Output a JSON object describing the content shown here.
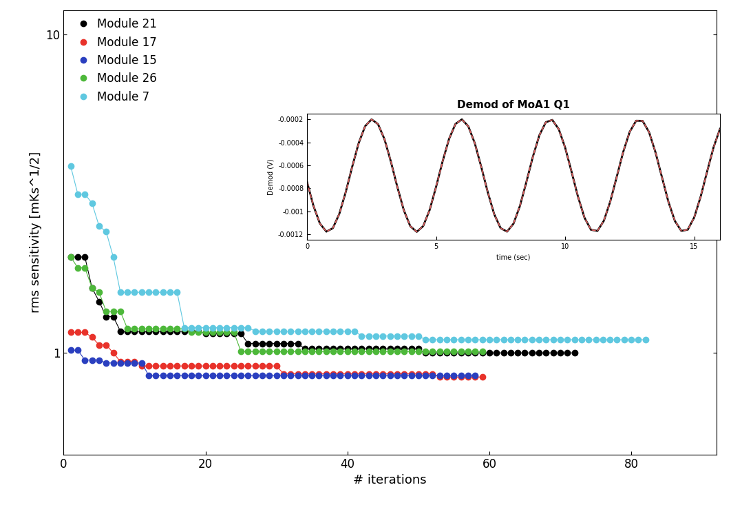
{
  "chart_data": [
    {
      "type": "line",
      "x_label": "# iterations",
      "y_label": "rms sensitivity [mKs^1/2]",
      "log": "y",
      "xlim": [
        0,
        92
      ],
      "xticks": [
        0,
        20,
        40,
        60,
        80
      ],
      "ylim": [
        0.48,
        11.9
      ],
      "yticks": [
        1,
        10
      ],
      "legend": "upper left",
      "marker": "o",
      "line_style": "solid",
      "series": [
        {
          "name": "Module 21",
          "color": "#000000",
          "x": [
            1,
            2,
            3,
            4,
            5,
            6,
            7,
            8,
            9,
            10,
            11,
            12,
            13,
            14,
            15,
            16,
            17,
            18,
            19,
            20,
            21,
            22,
            23,
            24,
            25,
            26,
            27,
            28,
            29,
            30,
            31,
            32,
            33,
            34,
            35,
            36,
            37,
            38,
            39,
            40,
            41,
            42,
            43,
            44,
            45,
            46,
            47,
            48,
            49,
            50,
            51,
            52,
            53,
            54,
            55,
            56,
            57,
            58,
            59,
            60,
            61,
            62,
            63,
            64,
            65,
            66,
            67,
            68,
            69,
            70,
            71,
            72
          ],
          "values": [
            2.0,
            2.0,
            2.0,
            1.6,
            1.45,
            1.3,
            1.3,
            1.17,
            1.17,
            1.17,
            1.17,
            1.17,
            1.17,
            1.17,
            1.17,
            1.17,
            1.17,
            1.17,
            1.17,
            1.15,
            1.15,
            1.15,
            1.15,
            1.15,
            1.15,
            1.07,
            1.07,
            1.07,
            1.07,
            1.07,
            1.07,
            1.07,
            1.07,
            1.03,
            1.03,
            1.03,
            1.03,
            1.03,
            1.03,
            1.03,
            1.03,
            1.03,
            1.03,
            1.03,
            1.03,
            1.03,
            1.03,
            1.03,
            1.03,
            1.03,
            1.0,
            1.0,
            1.0,
            1.0,
            1.0,
            1.0,
            1.0,
            1.0,
            1.0,
            1.0,
            1.0,
            1.0,
            1.0,
            1.0,
            1.0,
            1.0,
            1.0,
            1.0,
            1.0,
            1.0,
            1.0,
            1.0
          ]
        },
        {
          "name": "Module 17",
          "color": "#e8322a",
          "x": [
            1,
            2,
            3,
            4,
            5,
            6,
            7,
            8,
            9,
            10,
            11,
            12,
            13,
            14,
            15,
            16,
            17,
            18,
            19,
            20,
            21,
            22,
            23,
            24,
            25,
            26,
            27,
            28,
            29,
            30,
            31,
            32,
            33,
            34,
            35,
            36,
            37,
            38,
            39,
            40,
            41,
            42,
            43,
            44,
            45,
            46,
            47,
            48,
            49,
            50,
            51,
            52,
            53,
            54,
            55,
            56,
            57,
            58,
            59
          ],
          "values": [
            1.16,
            1.16,
            1.16,
            1.12,
            1.06,
            1.06,
            1.0,
            0.94,
            0.94,
            0.94,
            0.91,
            0.91,
            0.91,
            0.91,
            0.91,
            0.91,
            0.91,
            0.91,
            0.91,
            0.91,
            0.91,
            0.91,
            0.91,
            0.91,
            0.91,
            0.91,
            0.91,
            0.91,
            0.91,
            0.91,
            0.86,
            0.86,
            0.86,
            0.86,
            0.86,
            0.86,
            0.86,
            0.86,
            0.86,
            0.86,
            0.86,
            0.86,
            0.86,
            0.86,
            0.86,
            0.86,
            0.86,
            0.86,
            0.86,
            0.86,
            0.86,
            0.86,
            0.84,
            0.84,
            0.84,
            0.84,
            0.84,
            0.84,
            0.84
          ]
        },
        {
          "name": "Module 15",
          "color": "#2a3fbf",
          "x": [
            1,
            2,
            3,
            4,
            5,
            6,
            7,
            8,
            9,
            10,
            11,
            12,
            13,
            14,
            15,
            16,
            17,
            18,
            19,
            20,
            21,
            22,
            23,
            24,
            25,
            26,
            27,
            28,
            29,
            30,
            31,
            32,
            33,
            34,
            35,
            36,
            37,
            38,
            39,
            40,
            41,
            42,
            43,
            44,
            45,
            46,
            47,
            48,
            49,
            50,
            51,
            52,
            53,
            54,
            55,
            56,
            57,
            58
          ],
          "values": [
            1.02,
            1.02,
            0.95,
            0.95,
            0.95,
            0.93,
            0.93,
            0.93,
            0.93,
            0.93,
            0.93,
            0.85,
            0.85,
            0.85,
            0.85,
            0.85,
            0.85,
            0.85,
            0.85,
            0.85,
            0.85,
            0.85,
            0.85,
            0.85,
            0.85,
            0.85,
            0.85,
            0.85,
            0.85,
            0.85,
            0.85,
            0.85,
            0.85,
            0.85,
            0.85,
            0.85,
            0.85,
            0.85,
            0.85,
            0.85,
            0.85,
            0.85,
            0.85,
            0.85,
            0.85,
            0.85,
            0.85,
            0.85,
            0.85,
            0.85,
            0.85,
            0.85,
            0.85,
            0.85,
            0.85,
            0.85,
            0.85,
            0.85
          ]
        },
        {
          "name": "Module 26",
          "color": "#4db83a",
          "x": [
            1,
            2,
            3,
            4,
            5,
            6,
            7,
            8,
            9,
            10,
            11,
            12,
            13,
            14,
            15,
            16,
            17,
            18,
            19,
            20,
            21,
            22,
            23,
            24,
            25,
            26,
            27,
            28,
            29,
            30,
            31,
            32,
            33,
            34,
            35,
            36,
            37,
            38,
            39,
            40,
            41,
            42,
            43,
            44,
            45,
            46,
            47,
            48,
            49,
            50,
            51,
            52,
            53,
            54,
            55,
            56,
            57,
            58,
            59
          ],
          "values": [
            2.0,
            1.85,
            1.85,
            1.6,
            1.55,
            1.35,
            1.35,
            1.35,
            1.19,
            1.19,
            1.19,
            1.19,
            1.19,
            1.19,
            1.19,
            1.19,
            1.19,
            1.16,
            1.16,
            1.16,
            1.16,
            1.16,
            1.16,
            1.16,
            1.01,
            1.01,
            1.01,
            1.01,
            1.01,
            1.01,
            1.01,
            1.01,
            1.01,
            1.01,
            1.01,
            1.01,
            1.01,
            1.01,
            1.01,
            1.01,
            1.01,
            1.01,
            1.01,
            1.01,
            1.01,
            1.01,
            1.01,
            1.01,
            1.01,
            1.01,
            1.01,
            1.01,
            1.01,
            1.01,
            1.01,
            1.01,
            1.01,
            1.01,
            1.01
          ]
        },
        {
          "name": "Module 7",
          "color": "#5fc8e0",
          "x": [
            1,
            2,
            3,
            4,
            5,
            6,
            7,
            8,
            9,
            10,
            11,
            12,
            13,
            14,
            15,
            16,
            17,
            18,
            19,
            20,
            21,
            22,
            23,
            24,
            25,
            26,
            27,
            28,
            29,
            30,
            31,
            32,
            33,
            34,
            35,
            36,
            37,
            38,
            39,
            40,
            41,
            42,
            43,
            44,
            45,
            46,
            47,
            48,
            49,
            50,
            51,
            52,
            53,
            54,
            55,
            56,
            57,
            58,
            59,
            60,
            61,
            62,
            63,
            64,
            65,
            66,
            67,
            68,
            69,
            70,
            71,
            72,
            73,
            74,
            75,
            76,
            77,
            78,
            79,
            80,
            81,
            82
          ],
          "values": [
            3.85,
            3.15,
            3.15,
            2.95,
            2.5,
            2.4,
            2.0,
            1.55,
            1.55,
            1.55,
            1.55,
            1.55,
            1.55,
            1.55,
            1.55,
            1.55,
            1.2,
            1.2,
            1.2,
            1.2,
            1.2,
            1.2,
            1.2,
            1.2,
            1.2,
            1.2,
            1.17,
            1.17,
            1.17,
            1.17,
            1.17,
            1.17,
            1.17,
            1.17,
            1.17,
            1.17,
            1.17,
            1.17,
            1.17,
            1.17,
            1.17,
            1.13,
            1.13,
            1.13,
            1.13,
            1.13,
            1.13,
            1.13,
            1.13,
            1.13,
            1.1,
            1.1,
            1.1,
            1.1,
            1.1,
            1.1,
            1.1,
            1.1,
            1.1,
            1.1,
            1.1,
            1.1,
            1.1,
            1.1,
            1.1,
            1.1,
            1.1,
            1.1,
            1.1,
            1.1,
            1.1,
            1.1,
            1.1,
            1.1,
            1.1,
            1.1,
            1.1,
            1.1,
            1.1,
            1.1,
            1.1,
            1.1
          ]
        }
      ]
    },
    {
      "type": "line",
      "title": "Demod of MoA1 Q1",
      "x_label": "time (sec)",
      "y_label": "Demod (V)",
      "xlim": [
        0,
        16
      ],
      "xticks": [
        0,
        5,
        10,
        15
      ],
      "ylim": [
        -0.00125,
        -0.00015
      ],
      "yticks": [
        -0.0012,
        -0.001,
        -0.0008,
        -0.0006,
        -0.0004,
        -0.0002
      ],
      "series": [
        {
          "color": "#000000",
          "line_style": "solid",
          "x": [
            0,
            0.25,
            0.5,
            0.75,
            1,
            1.25,
            1.5,
            1.75,
            2,
            2.25,
            2.5,
            2.75,
            3,
            3.25,
            3.5,
            3.75,
            4,
            4.25,
            4.5,
            4.75,
            5,
            5.25,
            5.5,
            5.75,
            6,
            6.25,
            6.5,
            6.75,
            7,
            7.25,
            7.5,
            7.75,
            8,
            8.25,
            8.5,
            8.75,
            9,
            9.25,
            9.5,
            9.75,
            10,
            10.25,
            10.5,
            10.75,
            11,
            11.25,
            11.5,
            11.75,
            12,
            12.25,
            12.5,
            12.75,
            13,
            13.25,
            13.5,
            13.75,
            14,
            14.25,
            14.5,
            14.75,
            15,
            15.25,
            15.5,
            15.75,
            16
          ],
          "values": [
            -0.000745,
            -0.000954,
            -0.001108,
            -0.001178,
            -0.001148,
            -0.001024,
            -0.000833,
            -0.000613,
            -0.000408,
            -0.00026,
            -0.0002,
            -0.000241,
            -0.000372,
            -0.000569,
            -0.00079,
            -0.000991,
            -0.001131,
            -0.00118,
            -0.00113,
            -0.00099,
            -0.000788,
            -0.000568,
            -0.000372,
            -0.00024,
            -0.0002,
            -0.000261,
            -0.000408,
            -0.000614,
            -0.000833,
            -0.001025,
            -0.001148,
            -0.001178,
            -0.001108,
            -0.000953,
            -0.000744,
            -0.000525,
            -0.000339,
            -0.000225,
            -0.000205,
            -0.000284,
            -0.000446,
            -0.000658,
            -0.000876,
            -0.001057,
            -0.001162,
            -0.001172,
            -0.001083,
            -0.000914,
            -0.000699,
            -0.000483,
            -0.000309,
            -0.000212,
            -0.000213,
            -0.000311,
            -0.000487,
            -0.000704,
            -0.000918,
            -0.001085,
            -0.001172,
            -0.001161,
            -0.001054,
            -0.000873,
            -0.000654,
            -0.000443,
            -0.000282
          ]
        },
        {
          "color": "#e06060",
          "line_style": "dashed",
          "x": [
            0,
            0.25,
            0.5,
            0.75,
            1,
            1.25,
            1.5,
            1.75,
            2,
            2.25,
            2.5,
            2.75,
            3,
            3.25,
            3.5,
            3.75,
            4,
            4.25,
            4.5,
            4.75,
            5,
            5.25,
            5.5,
            5.75,
            6,
            6.25,
            6.5,
            6.75,
            7,
            7.25,
            7.5,
            7.75,
            8,
            8.25,
            8.5,
            8.75,
            9,
            9.25,
            9.5,
            9.75,
            10,
            10.25,
            10.5,
            10.75,
            11,
            11.25,
            11.5,
            11.75,
            12,
            12.25,
            12.5,
            12.75,
            13,
            13.25,
            13.5,
            13.75,
            14,
            14.25,
            14.5,
            14.75,
            15,
            15.25,
            15.5,
            15.75,
            16
          ],
          "values": [
            -0.000745,
            -0.000954,
            -0.001108,
            -0.001178,
            -0.001148,
            -0.001024,
            -0.000833,
            -0.000613,
            -0.000408,
            -0.00026,
            -0.0002,
            -0.000241,
            -0.000372,
            -0.000569,
            -0.00079,
            -0.000991,
            -0.001131,
            -0.00118,
            -0.00113,
            -0.00099,
            -0.000788,
            -0.000568,
            -0.000372,
            -0.00024,
            -0.0002,
            -0.000261,
            -0.000408,
            -0.000614,
            -0.000833,
            -0.001025,
            -0.001148,
            -0.001178,
            -0.001108,
            -0.000953,
            -0.000744,
            -0.000525,
            -0.000339,
            -0.000225,
            -0.000205,
            -0.000284,
            -0.000446,
            -0.000658,
            -0.000876,
            -0.001057,
            -0.001162,
            -0.001172,
            -0.001083,
            -0.000914,
            -0.000699,
            -0.000483,
            -0.000309,
            -0.000212,
            -0.000213,
            -0.000311,
            -0.000487,
            -0.000704,
            -0.000918,
            -0.001085,
            -0.001172,
            -0.001161,
            -0.001054,
            -0.000873,
            -0.000654,
            -0.000443,
            -0.000282
          ]
        }
      ]
    }
  ]
}
